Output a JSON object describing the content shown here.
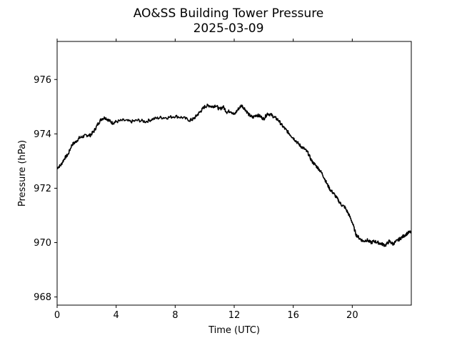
{
  "chart_data": {
    "type": "line",
    "title": "AO&SS Building Tower Pressure",
    "subtitle": "2025-03-09",
    "xlabel": "Time (UTC)",
    "ylabel": "Pressure (hPa)",
    "xlim": [
      0,
      24
    ],
    "ylim": [
      967.7,
      977.4
    ],
    "xticks": [
      0,
      4,
      8,
      12,
      16,
      20
    ],
    "yticks": [
      968,
      970,
      972,
      974,
      976
    ],
    "grid": false,
    "legend": "none",
    "line_color": "#000000",
    "series": [
      {
        "x": [
          0,
          0.25,
          0.5,
          0.75,
          1.0,
          1.25,
          1.5,
          1.75,
          2.0,
          2.25,
          2.5,
          2.75,
          3.0,
          3.25,
          3.5,
          3.75,
          4.0,
          4.5,
          5.0,
          5.5,
          6.0,
          6.5,
          7.0,
          7.5,
          8.0,
          8.5,
          9.0,
          9.25,
          9.5,
          9.75,
          10.0,
          10.25,
          10.5,
          10.75,
          11.0,
          11.25,
          11.5,
          11.75,
          12.0,
          12.25,
          12.5,
          12.75,
          13.0,
          13.25,
          13.5,
          13.75,
          14.0,
          14.25,
          14.5,
          14.75,
          15.0,
          15.25,
          15.5,
          15.75,
          16.0,
          16.25,
          16.5,
          16.75,
          17.0,
          17.25,
          17.5,
          17.75,
          18.0,
          18.25,
          18.5,
          18.75,
          19.0,
          19.25,
          19.5,
          19.75,
          20.0,
          20.25,
          20.5,
          20.75,
          21.0,
          21.25,
          21.5,
          21.75,
          22.0,
          22.25,
          22.5,
          22.75,
          23.0,
          23.25,
          23.5,
          23.75,
          24.0
        ],
        "y": [
          972.75,
          972.85,
          973.1,
          973.25,
          973.6,
          973.7,
          973.85,
          973.9,
          973.95,
          973.95,
          974.1,
          974.35,
          974.55,
          974.6,
          974.5,
          974.4,
          974.45,
          974.5,
          974.45,
          974.5,
          974.45,
          974.55,
          974.6,
          974.6,
          974.65,
          974.6,
          974.5,
          974.55,
          974.7,
          974.85,
          975.0,
          975.05,
          975.0,
          975.05,
          974.9,
          975.0,
          974.8,
          974.85,
          974.7,
          974.9,
          975.05,
          974.9,
          974.7,
          974.6,
          974.7,
          974.65,
          974.55,
          974.75,
          974.7,
          974.6,
          974.5,
          974.3,
          974.15,
          974.0,
          973.85,
          973.7,
          973.55,
          973.45,
          973.3,
          973.0,
          972.85,
          972.7,
          972.5,
          972.2,
          971.95,
          971.8,
          971.6,
          971.4,
          971.3,
          971.05,
          970.75,
          970.3,
          970.15,
          970.05,
          970.1,
          970.0,
          970.05,
          970.0,
          969.95,
          969.9,
          970.05,
          969.95,
          970.05,
          970.15,
          970.25,
          970.35,
          970.4
        ]
      }
    ]
  }
}
